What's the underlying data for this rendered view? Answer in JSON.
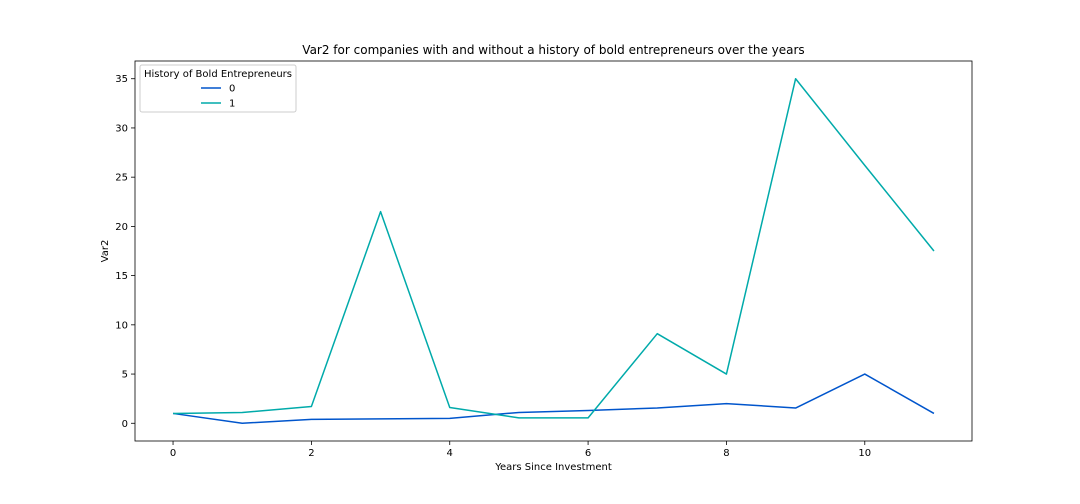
{
  "chart_data": {
    "type": "line",
    "title": "Var2 for companies with and without a history of bold entrepreneurs over the years",
    "xlabel": "Years Since Investment",
    "ylabel": "Var2",
    "xlim": [
      -0.55,
      11.55
    ],
    "ylim": [
      -1.8,
      36.8
    ],
    "xticks": [
      0,
      2,
      4,
      6,
      8,
      10
    ],
    "xtick_labels": [
      "0",
      "2",
      "4",
      "6",
      "8",
      "10"
    ],
    "yticks": [
      0,
      5,
      10,
      15,
      20,
      25,
      30,
      35
    ],
    "ytick_labels": [
      "0",
      "5",
      "10",
      "15",
      "20",
      "25",
      "30",
      "35"
    ],
    "grid": false,
    "legend": {
      "title": "History of Bold Entrepreneurs",
      "position": "top-left"
    },
    "x": [
      0,
      1,
      2,
      3,
      4,
      5,
      6,
      7,
      8,
      9,
      10,
      11
    ],
    "series": [
      {
        "name": "0",
        "color": "#0055cc",
        "values": [
          1.0,
          0.0,
          0.4,
          0.45,
          0.5,
          1.1,
          1.3,
          1.55,
          2.0,
          1.55,
          5.0,
          1.0
        ]
      },
      {
        "name": "1",
        "color": "#00aaaa",
        "values": [
          1.0,
          1.1,
          1.7,
          21.5,
          1.6,
          0.55,
          0.55,
          9.1,
          5.0,
          35.0,
          26.2,
          17.5
        ]
      }
    ]
  }
}
